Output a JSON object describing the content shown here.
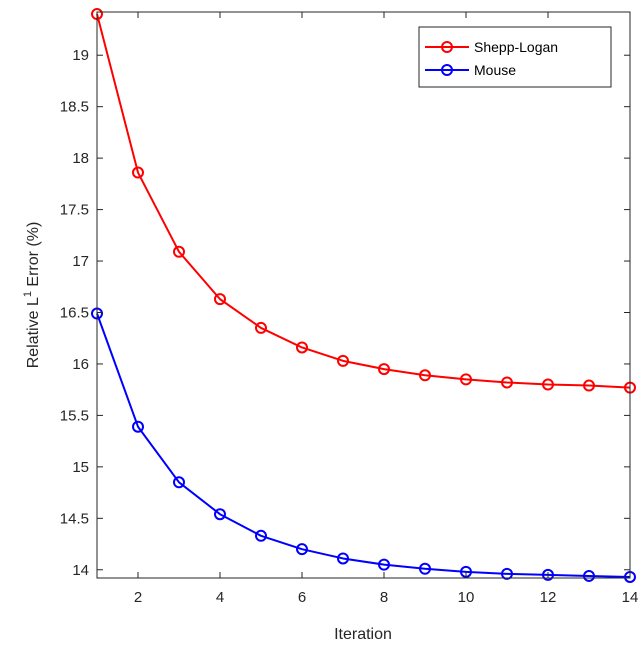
{
  "chart_data": {
    "type": "line",
    "xlabel": "Iteration",
    "ylabel_parts": [
      "Relative L",
      "1",
      " Error (%)"
    ],
    "xlim": [
      1,
      14
    ],
    "ylim": [
      13.92,
      19.42
    ],
    "xticks": [
      2,
      4,
      6,
      8,
      10,
      12,
      14
    ],
    "yticks": [
      14,
      14.5,
      15,
      15.5,
      16,
      16.5,
      17,
      17.5,
      18,
      18.5,
      19
    ],
    "ytick_labels": [
      "14",
      "14.5",
      "15",
      "15.5",
      "16",
      "16.5",
      "17",
      "17.5",
      "18",
      "18.5",
      "19"
    ],
    "grid": false,
    "legend_position": "top-right",
    "x": [
      1,
      2,
      3,
      4,
      5,
      6,
      7,
      8,
      9,
      10,
      11,
      12,
      13,
      14
    ],
    "series": [
      {
        "name": "Shepp-Logan",
        "color": "#ff0000",
        "marker": "circle",
        "values": [
          19.4,
          17.86,
          17.09,
          16.63,
          16.35,
          16.16,
          16.03,
          15.95,
          15.89,
          15.85,
          15.82,
          15.8,
          15.79,
          15.77
        ]
      },
      {
        "name": "Mouse",
        "color": "#0000ff",
        "marker": "circle",
        "values": [
          16.49,
          15.39,
          14.85,
          14.54,
          14.33,
          14.2,
          14.11,
          14.05,
          14.01,
          13.98,
          13.96,
          13.95,
          13.94,
          13.93
        ]
      }
    ]
  }
}
